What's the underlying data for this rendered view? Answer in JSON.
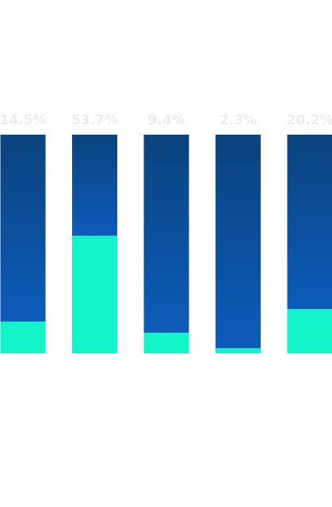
{
  "chart_data": {
    "type": "bar",
    "stacked": true,
    "percent_scale": true,
    "categories": [
      "",
      "",
      "",
      "",
      ""
    ],
    "series": [
      {
        "values": [
          14.5,
          53.7,
          9.4,
          2.3,
          20.2
        ]
      },
      {
        "values": [
          85.5,
          46.3,
          90.6,
          97.7,
          79.8
        ]
      }
    ],
    "data_labels": [
      "14.5%",
      "53.7%",
      "9.4%",
      "2.3%",
      "20.2%"
    ],
    "ylim": [
      0,
      100
    ],
    "grid": false,
    "legend": "none",
    "colors": {
      "highlight": "#14f4c9",
      "remainder_top": "#0b437c",
      "remainder_bottom": "#0d5bba",
      "label": "#ececec",
      "background": "#ffffff"
    }
  }
}
